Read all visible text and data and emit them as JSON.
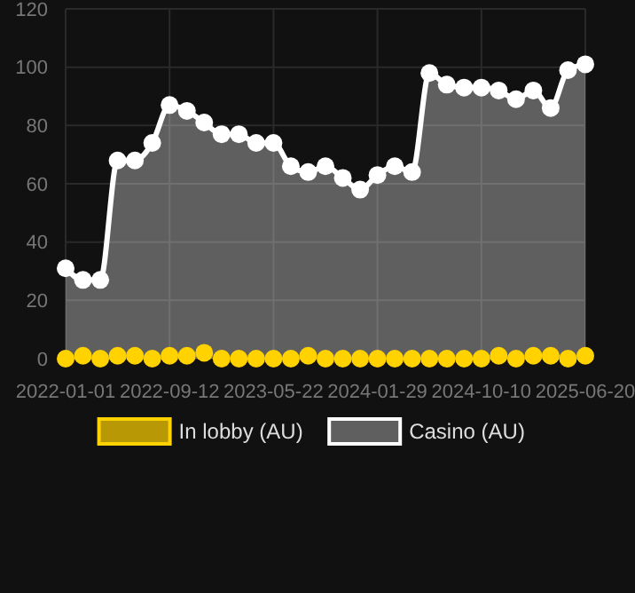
{
  "chart_data": {
    "type": "scatter",
    "categories": [
      "2022-01-01",
      null,
      null,
      null,
      null,
      null,
      "2022-09-12",
      null,
      null,
      null,
      null,
      null,
      "2023-05-22",
      null,
      null,
      null,
      null,
      null,
      "2024-01-29",
      null,
      null,
      null,
      null,
      null,
      "2024-10-10",
      null,
      null,
      null,
      null,
      null,
      "2025-06-20"
    ],
    "series": [
      {
        "name": "In lobby (AU)",
        "color": "#ffd200",
        "values": [
          0,
          1,
          0,
          1,
          1,
          0,
          1,
          1,
          2,
          0,
          0,
          0,
          0,
          0,
          1,
          0,
          0,
          0,
          0,
          0,
          0,
          0,
          0,
          0,
          0,
          1,
          0,
          1,
          1,
          0,
          1
        ]
      },
      {
        "name": "Casino (AU)",
        "type": "area",
        "color": "#ffffff",
        "values": [
          31,
          27,
          27,
          68,
          68,
          74,
          87,
          85,
          81,
          77,
          77,
          74,
          74,
          66,
          64,
          66,
          62,
          58,
          63,
          66,
          64,
          98,
          94,
          93,
          93,
          92,
          89,
          92,
          86,
          99,
          101
        ]
      }
    ],
    "ylim": [
      0,
      120
    ],
    "yticks": [
      0,
      20,
      40,
      60,
      80,
      100,
      120
    ],
    "grid": true,
    "legend": "bottom",
    "marker": "circle"
  }
}
